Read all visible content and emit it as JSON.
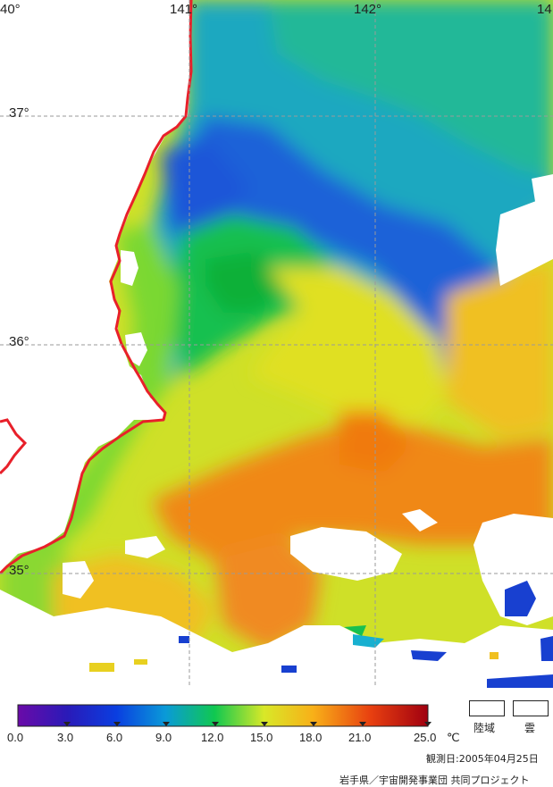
{
  "map": {
    "longitude_labels": [
      "40°",
      "141°",
      "142°",
      "14"
    ],
    "latitude_labels": [
      "37°",
      "36°",
      "35°"
    ]
  },
  "colorbar": {
    "ticks": [
      "0.0",
      "3.0",
      "6.0",
      "9.0",
      "12.0",
      "15.0",
      "18.0",
      "21.0",
      "25.0"
    ],
    "unit": "℃"
  },
  "legend": {
    "land_label": "陸域",
    "cloud_label": "雲"
  },
  "observation_date": "観測日:2005年04月25日",
  "credit": "岩手県／宇宙開発事業団  共同プロジェクト",
  "colors": {
    "coast_line": "#e8202a",
    "grid": "#9a9a9a"
  }
}
